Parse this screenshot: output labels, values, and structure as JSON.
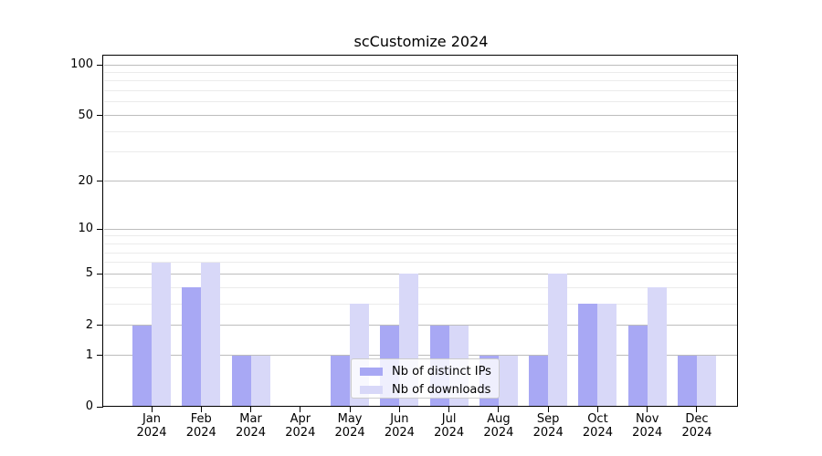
{
  "chart_data": {
    "type": "bar",
    "title": "scCustomize 2024",
    "x_tick_labels": [
      [
        "Jan",
        "2024"
      ],
      [
        "Feb",
        "2024"
      ],
      [
        "Mar",
        "2024"
      ],
      [
        "Apr",
        "2024"
      ],
      [
        "May",
        "2024"
      ],
      [
        "Jun",
        "2024"
      ],
      [
        "Jul",
        "2024"
      ],
      [
        "Aug",
        "2024"
      ],
      [
        "Sep",
        "2024"
      ],
      [
        "Oct",
        "2024"
      ],
      [
        "Nov",
        "2024"
      ],
      [
        "Dec",
        "2024"
      ]
    ],
    "series": [
      {
        "name": "Nb of distinct IPs",
        "color": "#a8a8f4",
        "values": [
          2,
          4,
          1,
          0,
          1,
          2,
          2,
          1,
          1,
          3,
          2,
          1
        ]
      },
      {
        "name": "Nb of downloads",
        "color": "#d8d8f8",
        "values": [
          6,
          6,
          1,
          0,
          3,
          5,
          2,
          1,
          5,
          3,
          4,
          1
        ]
      }
    ],
    "y_axis": {
      "scale": "log10(1+x)",
      "major_ticks": [
        0,
        1,
        2,
        5,
        10,
        20,
        50,
        100
      ],
      "minor_gridlines": [
        3,
        4,
        6,
        7,
        8,
        9,
        30,
        40,
        60,
        70,
        80,
        90
      ]
    },
    "grid": "horizontal",
    "legend_position": "lower-center",
    "colors": {
      "major_grid": "#bdbdbd",
      "minor_grid": "#ebebeb",
      "axis": "#000000",
      "text": "#000000",
      "legend_border": "#cccccc"
    }
  }
}
